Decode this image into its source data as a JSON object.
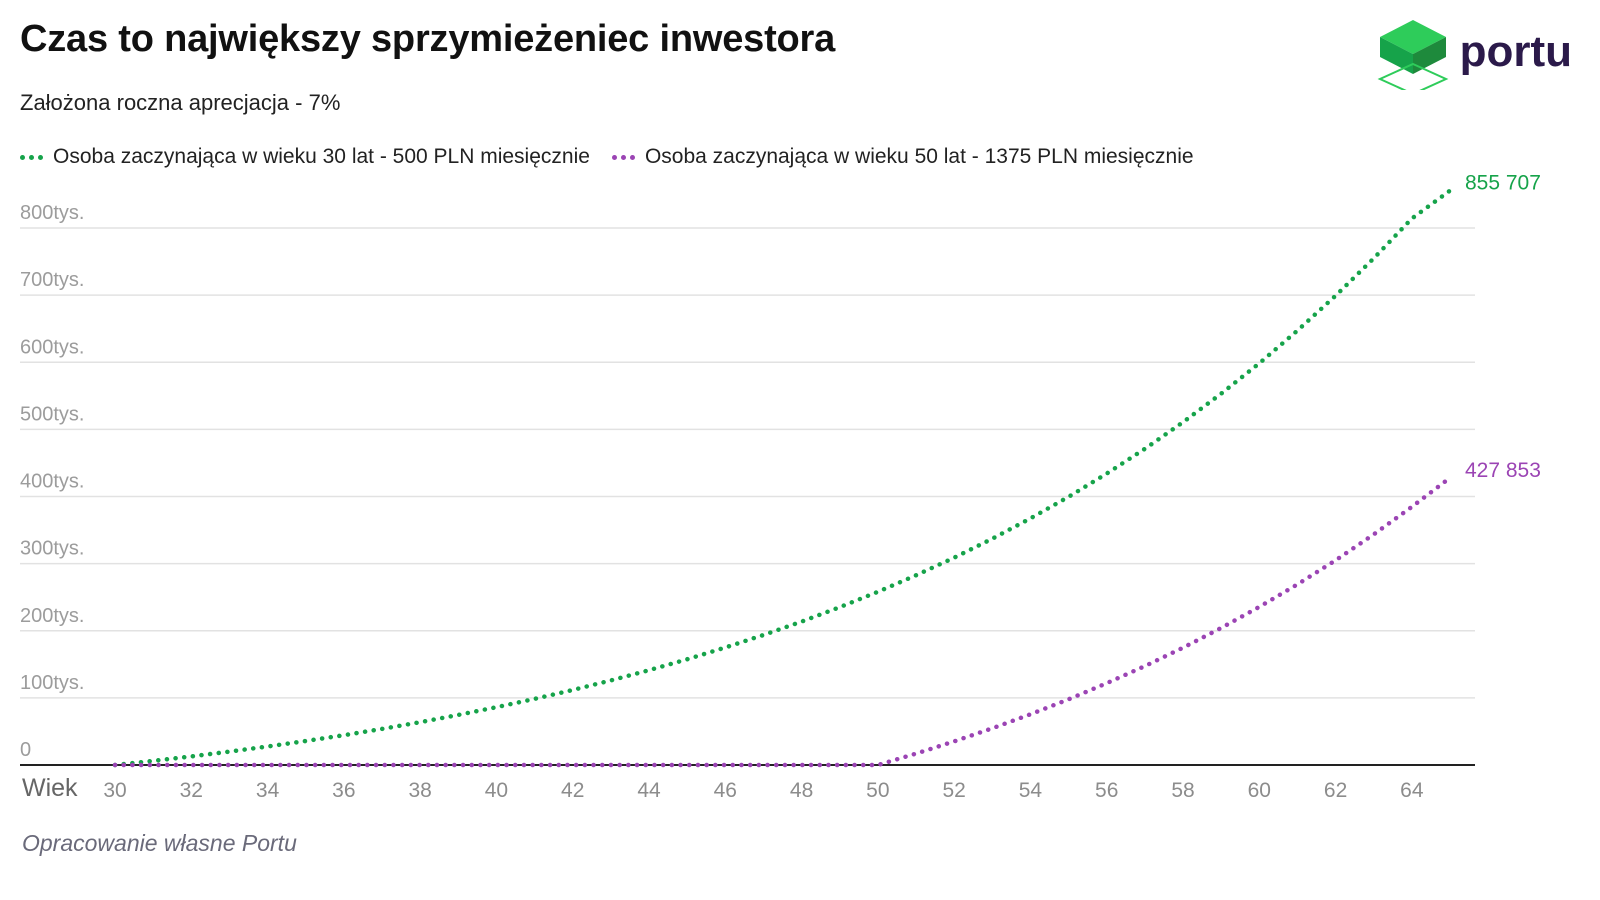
{
  "title": "Czas to największy sprzymieżeniec inwestora",
  "subtitle": "Założona roczna aprecjacja - 7%",
  "logo": {
    "text": "portu",
    "text_color": "#2b1a4a",
    "accent_color": "#1fa34a"
  },
  "footer": "Opracowanie własne Portu",
  "colors": {
    "series_a": "#16a34a",
    "series_b": "#9b44b4",
    "grid": "#e2e2e2",
    "axis": "#222222",
    "tick": "#8c8c8c"
  },
  "chart_data": {
    "type": "line",
    "xlabel": "Wiek",
    "ylabel": "",
    "xlim": [
      30,
      65
    ],
    "ylim": [
      0,
      800000
    ],
    "x_ticks": [
      30,
      32,
      34,
      36,
      38,
      40,
      42,
      44,
      46,
      48,
      50,
      52,
      54,
      56,
      58,
      60,
      62,
      64
    ],
    "y_ticks": [
      {
        "value": 0,
        "label": "0"
      },
      {
        "value": 100000,
        "label": "100tys."
      },
      {
        "value": 200000,
        "label": "200tys."
      },
      {
        "value": 300000,
        "label": "300tys."
      },
      {
        "value": 400000,
        "label": "400tys."
      },
      {
        "value": 500000,
        "label": "500tys."
      },
      {
        "value": 600000,
        "label": "600tys."
      },
      {
        "value": 700000,
        "label": "700tys."
      },
      {
        "value": 800000,
        "label": "800tys."
      }
    ],
    "grid": true,
    "legend_position": "top-left",
    "x": [
      30,
      31,
      32,
      33,
      34,
      35,
      36,
      37,
      38,
      39,
      40,
      41,
      42,
      43,
      44,
      45,
      46,
      47,
      48,
      49,
      50,
      51,
      52,
      53,
      54,
      55,
      56,
      57,
      58,
      59,
      60,
      61,
      62,
      63,
      64,
      65
    ],
    "series": [
      {
        "name": "Osoba zaczynająca w wieku 30 lat - 500 PLN miesięcznie",
        "color": "#16a34a",
        "end_label": "855 707",
        "values": [
          0,
          6180,
          12800,
          19900,
          27500,
          35700,
          44400,
          53800,
          63800,
          74600,
          86100,
          98500,
          111800,
          126000,
          141200,
          157500,
          175000,
          193700,
          213700,
          235100,
          258000,
          282600,
          308900,
          337100,
          367300,
          399600,
          434100,
          471100,
          510700,
          553100,
          598500,
          647100,
          699100,
          754700,
          814200,
          855707
        ]
      },
      {
        "name": "Osoba zaczynająca w wieku 50 lat - 1375 PLN miesięcznie",
        "color": "#9b44b4",
        "end_label": "427 853",
        "values": [
          0,
          0,
          0,
          0,
          0,
          0,
          0,
          0,
          0,
          0,
          0,
          0,
          0,
          0,
          0,
          0,
          0,
          0,
          0,
          0,
          0,
          17000,
          35200,
          54700,
          75600,
          97900,
          121800,
          147400,
          174800,
          204100,
          235500,
          269100,
          305000,
          343500,
          384700,
          427853
        ]
      }
    ]
  }
}
